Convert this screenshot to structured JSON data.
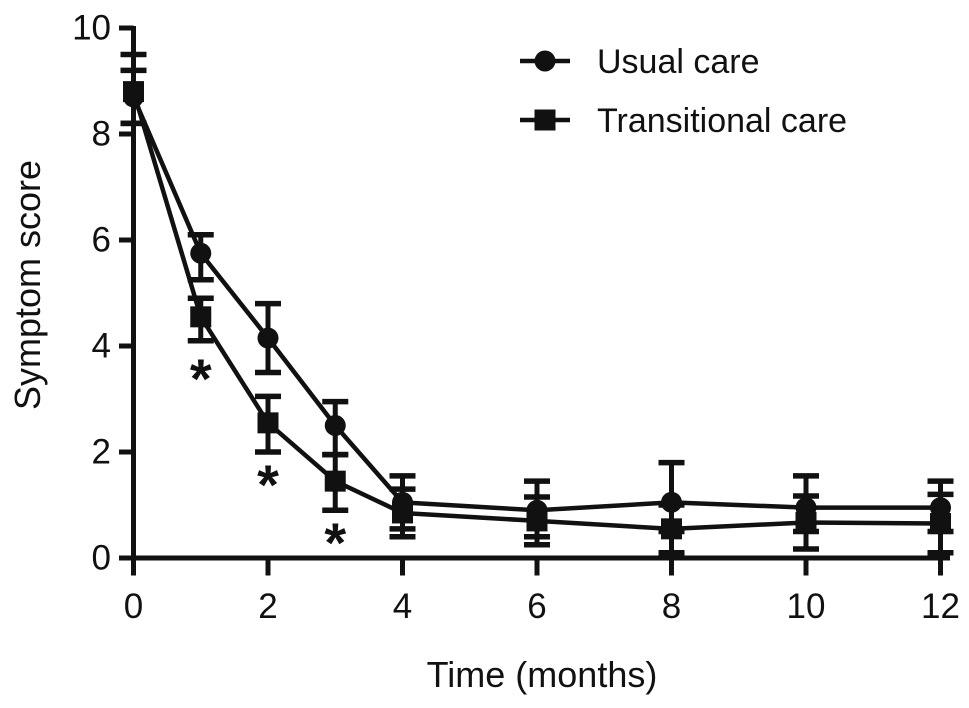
{
  "figure": {
    "background": "#ffffff",
    "ink_color": "#111111"
  },
  "chart_data": {
    "type": "line",
    "title": "",
    "xlabel": "Time (months)",
    "ylabel": "Symptom score",
    "x": [
      0,
      1,
      2,
      3,
      4,
      6,
      8,
      10,
      12
    ],
    "xlim": [
      0,
      12
    ],
    "ylim": [
      0,
      10
    ],
    "x_ticks": [
      0,
      2,
      4,
      6,
      8,
      10,
      12
    ],
    "y_ticks": [
      0,
      2,
      4,
      6,
      8,
      10
    ],
    "grid": false,
    "legend_position": "top-right",
    "error_bars": true,
    "series": [
      {
        "name": "Usual care",
        "marker": "circle",
        "color": "#111111",
        "values": [
          8.7,
          5.75,
          4.15,
          2.5,
          1.05,
          0.9,
          1.05,
          0.95,
          0.95
        ],
        "err_up": [
          0.5,
          0.35,
          0.65,
          0.45,
          0.5,
          0.55,
          0.75,
          0.6,
          0.5
        ],
        "err_down": [
          0.5,
          0.5,
          0.65,
          0.55,
          0.5,
          0.5,
          0.55,
          0.45,
          0.45
        ]
      },
      {
        "name": "Transitional care",
        "marker": "square",
        "color": "#111111",
        "values": [
          8.8,
          4.55,
          2.55,
          1.45,
          0.85,
          0.7,
          0.55,
          0.67,
          0.65
        ],
        "err_up": [
          0.7,
          0.35,
          0.5,
          0.5,
          0.45,
          0.45,
          0.45,
          0.5,
          0.55
        ],
        "err_down": [
          0.6,
          0.45,
          0.55,
          0.55,
          0.45,
          0.45,
          0.45,
          0.5,
          0.55
        ]
      }
    ],
    "annotations": [
      {
        "text": "*",
        "x": 1,
        "y": 3.55
      },
      {
        "text": "*",
        "x": 2,
        "y": 1.55
      },
      {
        "text": "*",
        "x": 3,
        "y": 0.45
      }
    ]
  }
}
